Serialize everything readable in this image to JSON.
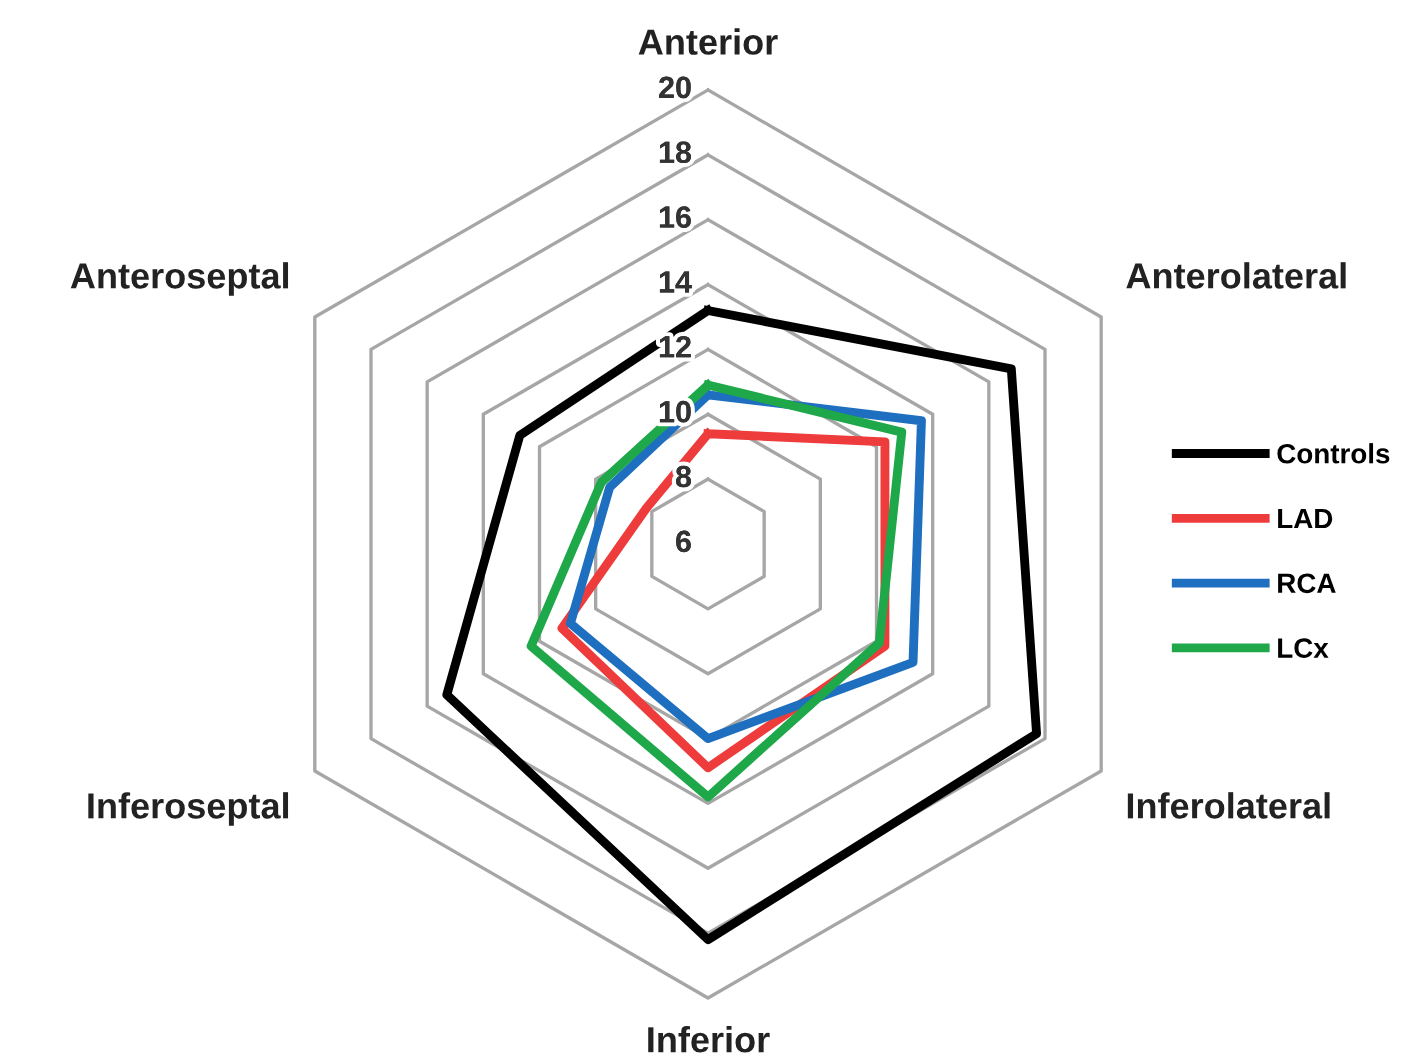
{
  "chart_data": {
    "type": "radar",
    "categories": [
      "Anterior",
      "Anterolateral",
      "Inferolateral",
      "Inferior",
      "Inferoseptal",
      "Anteroseptal"
    ],
    "ylim": [
      6,
      20
    ],
    "yticks": [
      6,
      8,
      10,
      12,
      14,
      16,
      18,
      20
    ],
    "grid": true,
    "legend": "right",
    "series": [
      {
        "name": "Controls",
        "color": "#000000",
        "values": [
          13.2,
          16.8,
          17.7,
          18.2,
          15.3,
          12.7
        ]
      },
      {
        "name": "LAD",
        "color": "#ee3b3b",
        "values": [
          9.4,
          12.3,
          12.3,
          12.9,
          11.2,
          8.2
        ]
      },
      {
        "name": "RCA",
        "color": "#1f6fc0",
        "values": [
          10.6,
          13.6,
          13.3,
          12.0,
          10.9,
          9.5
        ]
      },
      {
        "name": "LCx",
        "color": "#1fa84a",
        "values": [
          10.9,
          12.9,
          12.1,
          13.8,
          12.3,
          9.8
        ]
      }
    ]
  }
}
